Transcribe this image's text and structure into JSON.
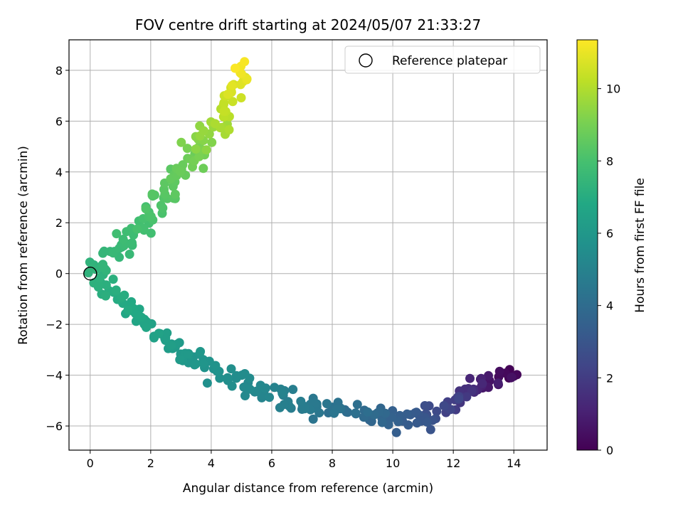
{
  "chart_data": {
    "type": "scatter",
    "title": "FOV centre drift starting at 2024/05/07 21:33:27",
    "xlabel": "Angular distance from reference (arcmin)",
    "ylabel": "Rotation from reference (arcmin)",
    "xlim": [
      -0.7,
      15.1
    ],
    "ylim": [
      -6.95,
      9.2
    ],
    "xticks": [
      0,
      2,
      4,
      6,
      8,
      10,
      12,
      14
    ],
    "yticks": [
      -6,
      -4,
      -2,
      0,
      2,
      4,
      6,
      8
    ],
    "grid": true,
    "legend": {
      "placement": "top-right",
      "entries": [
        "Reference platepar"
      ]
    },
    "reference_point": {
      "x": 0,
      "y": 0,
      "name": "Reference platepar"
    },
    "colorbar": {
      "label": "Hours from first FF file",
      "range": [
        0,
        11.35
      ],
      "ticks": [
        0,
        2,
        4,
        6,
        8,
        10
      ],
      "colormap": "viridis"
    },
    "points": []
  }
}
